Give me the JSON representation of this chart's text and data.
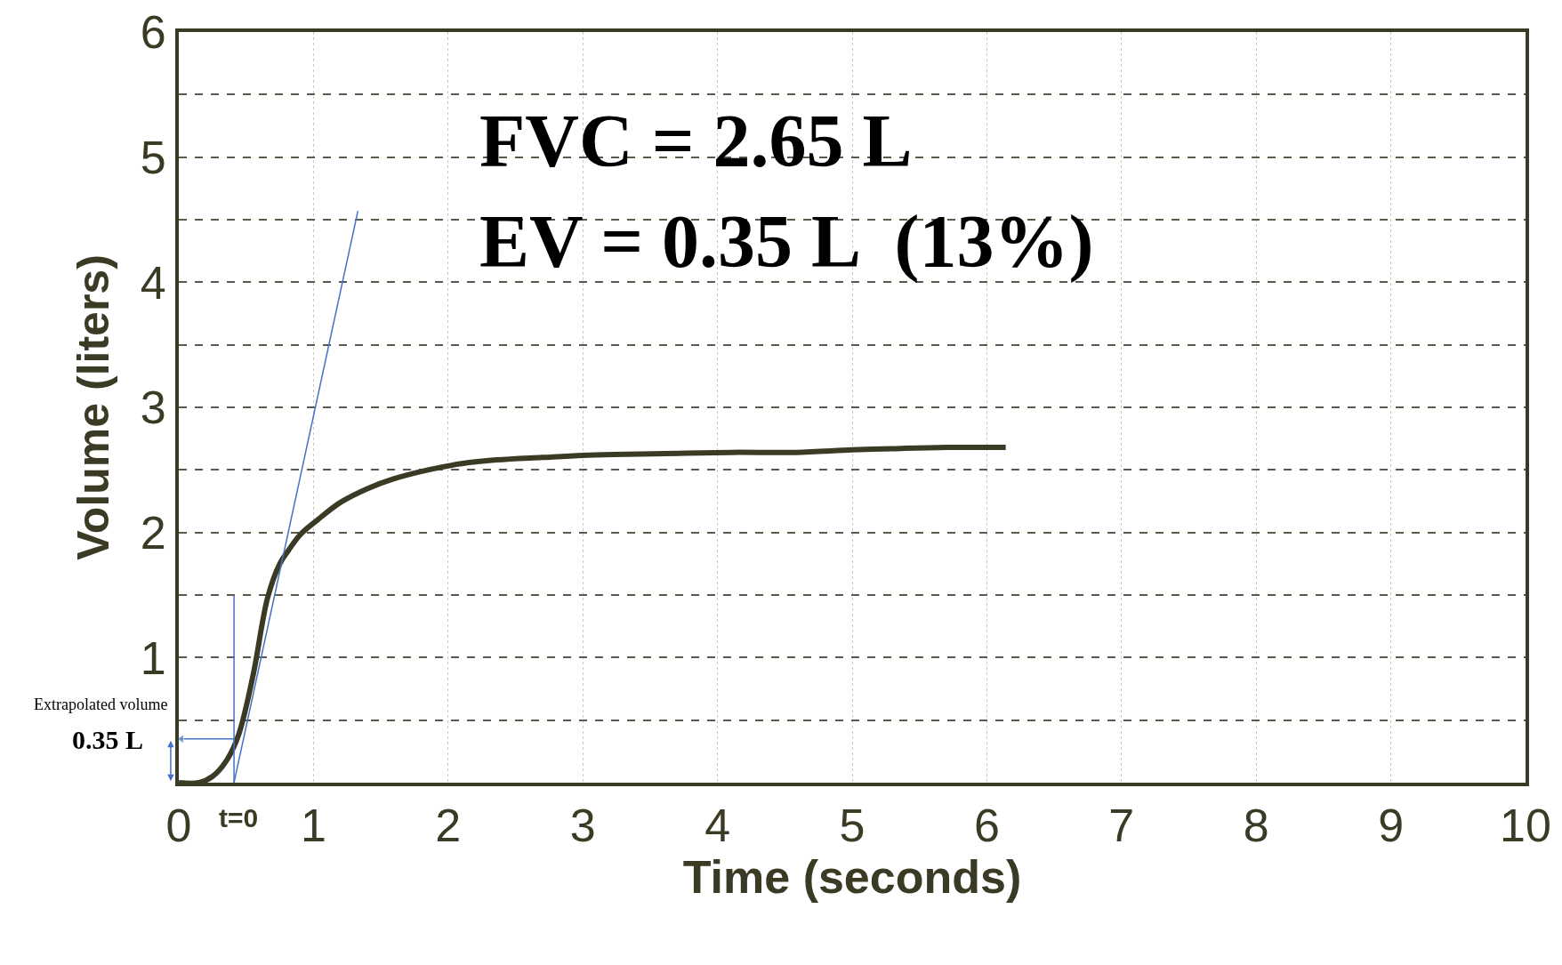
{
  "chart_data": {
    "type": "line",
    "xlabel": "Time (seconds)",
    "ylabel": "Volume (liters)",
    "xlim": [
      0,
      10
    ],
    "ylim": [
      0,
      6
    ],
    "xticks": [
      0,
      1,
      2,
      3,
      4,
      5,
      6,
      7,
      8,
      9,
      10
    ],
    "yticks": [
      {
        "value": 0,
        "label": null
      },
      {
        "value": 0.5,
        "label": null
      },
      1,
      {
        "value": 1.5,
        "label": null
      },
      2,
      {
        "value": 2.5,
        "label": null
      },
      3,
      {
        "value": 3.5,
        "label": null
      },
      4,
      {
        "value": 4.5,
        "label": null
      },
      5,
      {
        "value": 5.5,
        "label": null
      },
      6
    ],
    "grid": true,
    "line_style": "solid",
    "marker": "none",
    "series": [
      {
        "color": "#3b3a24",
        "x": [
          0,
          0.15,
          0.25,
          0.35,
          0.44,
          0.55,
          0.66,
          0.75,
          0.81,
          0.9,
          1.03,
          1.2,
          1.4,
          1.6,
          1.85,
          2.1,
          2.36,
          2.7,
          3.1,
          3.6,
          4.1,
          4.58,
          5.0,
          5.3,
          5.7,
          6.14
        ],
        "values": [
          0,
          0,
          0.05,
          0.17,
          0.37,
          0.85,
          1.48,
          1.75,
          1.85,
          1.98,
          2.1,
          2.24,
          2.35,
          2.43,
          2.5,
          2.55,
          2.58,
          2.6,
          2.62,
          2.63,
          2.64,
          2.64,
          2.66,
          2.67,
          2.68,
          2.68
        ]
      },
      {
        "color": "#4472c4",
        "x": [
          0.41,
          1.33
        ],
        "values": [
          0,
          4.57
        ]
      },
      {
        "color": "#4472c4",
        "x": [
          0.41,
          0.41
        ],
        "values": [
          0,
          1.5
        ]
      },
      {
        "color": "#4472c4",
        "x": [
          0.02,
          0.41
        ],
        "values": [
          0.35,
          0.35
        ],
        "marker": "triangle"
      }
    ],
    "annotations": [
      "FVC = 2.65 L",
      "EV = 0.35 L  (13%)",
      "Extrapolated volume",
      "0.35 L",
      "t=0"
    ]
  }
}
